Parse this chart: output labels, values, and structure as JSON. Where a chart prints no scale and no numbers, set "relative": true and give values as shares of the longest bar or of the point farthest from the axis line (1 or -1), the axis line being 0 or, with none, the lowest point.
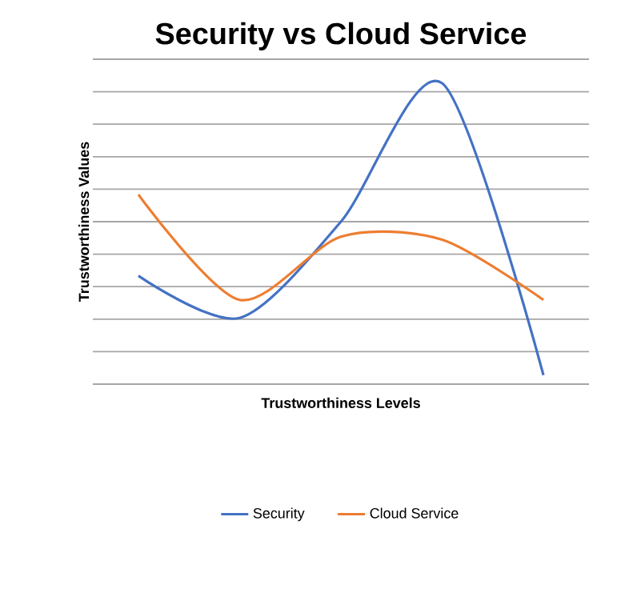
{
  "chart_data": {
    "type": "line",
    "title": "Security vs Cloud Service",
    "xlabel": "Trustworthiness Levels",
    "ylabel": "Trustworthiness  Values",
    "relative": true,
    "categories": [
      null,
      null,
      null,
      null,
      null
    ],
    "series": [
      {
        "name": "Security",
        "color": "#4472c4",
        "values": [
          0.36,
          0.22,
          0.54,
          1,
          0.03
        ]
      },
      {
        "name": "Cloud Service",
        "color": "#ed7d31",
        "values": [
          0.63,
          0.28,
          0.49,
          0.48,
          0.28
        ]
      }
    ],
    "grid": "y",
    "legend": "bottom",
    "marker": "none",
    "line_style": "solid"
  }
}
